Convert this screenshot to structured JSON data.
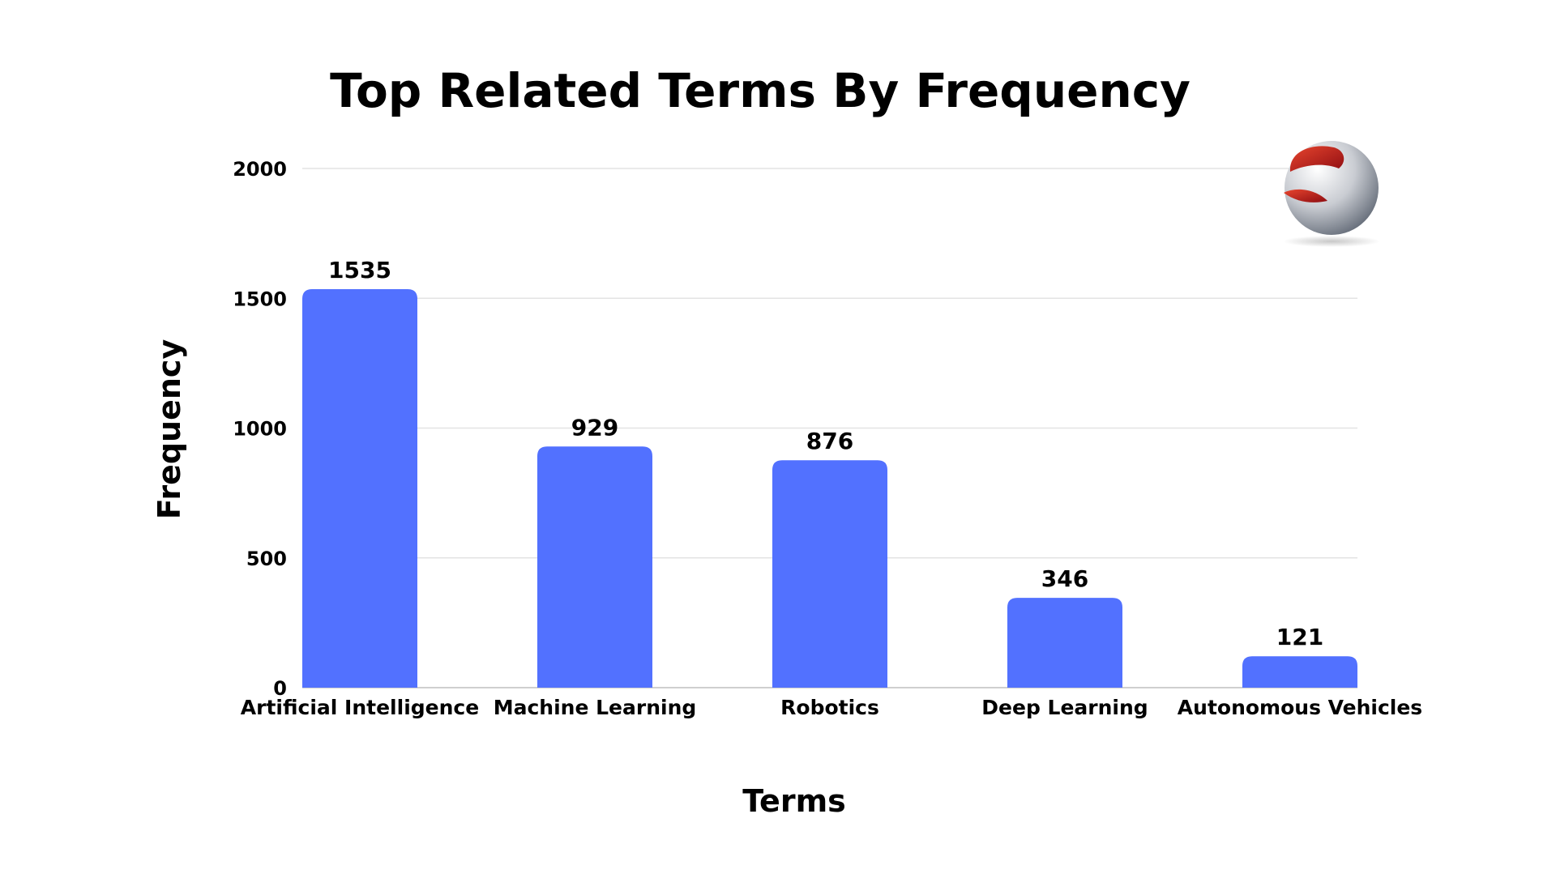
{
  "chart_data": {
    "type": "bar",
    "title": "Top Related Terms By Frequency",
    "xlabel": "Terms",
    "ylabel": "Frequency",
    "categories": [
      "Artificial Intelligence",
      "Machine Learning",
      "Robotics",
      "Deep Learning",
      "Autonomous Vehicles"
    ],
    "values": [
      1535,
      929,
      876,
      346,
      121
    ],
    "data_labels": [
      "1535",
      "929",
      "876",
      "346",
      "121"
    ],
    "ylim": [
      0,
      2000
    ],
    "yticks": [
      0,
      500,
      1000,
      1500,
      2000
    ],
    "ytick_labels": [
      "0",
      "500",
      "1000",
      "1500",
      "2000"
    ],
    "grid": true,
    "legend": "none",
    "bar_color": "#5271ff",
    "logo": "red-silver-sphere-logo"
  }
}
